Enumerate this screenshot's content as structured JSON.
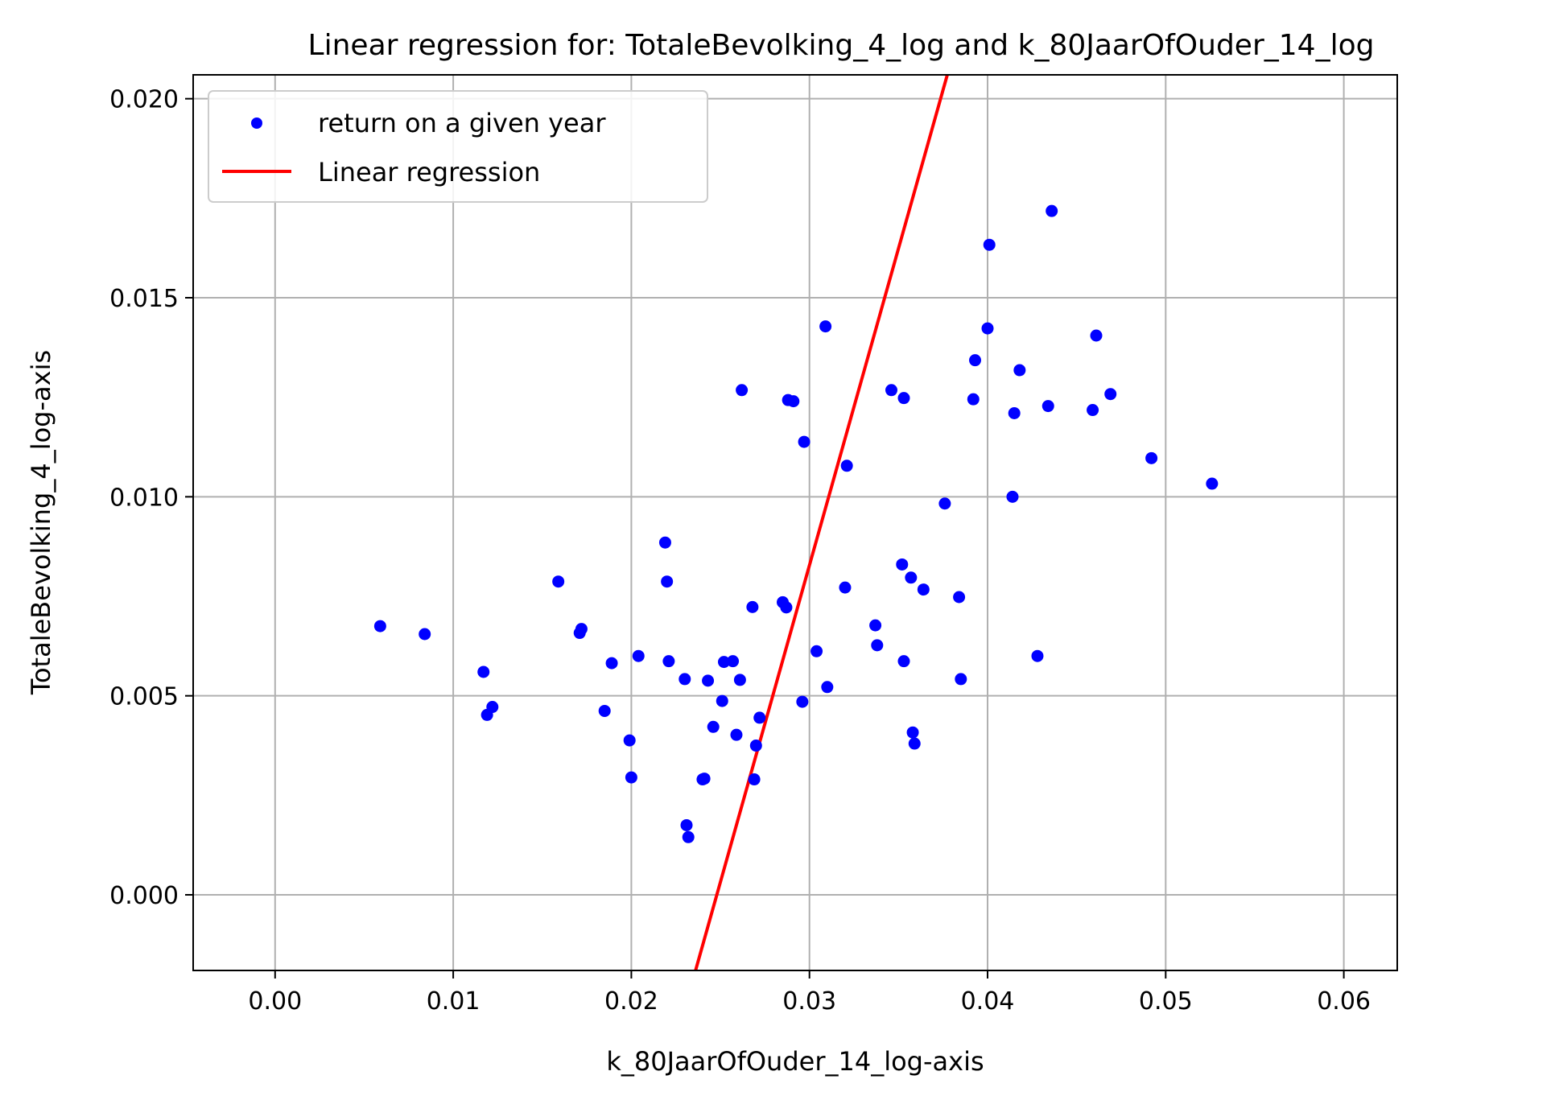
{
  "chart_data": {
    "type": "scatter",
    "title": "Linear regression for: TotaleBevolking_4_log and k_80JaarOfOuder_14_log",
    "xlabel": "k_80JaarOfOuder_14_log-axis",
    "ylabel": "TotaleBevolking_4_log-axis",
    "xlim": [
      -0.0046,
      0.063
    ],
    "ylim": [
      -0.0019,
      0.0206
    ],
    "xticks": [
      "0.00",
      "0.01",
      "0.02",
      "0.03",
      "0.04",
      "0.05",
      "0.06"
    ],
    "xtick_values": [
      0.0,
      0.01,
      0.02,
      0.03,
      0.04,
      0.05,
      0.06
    ],
    "yticks": [
      "0.000",
      "0.005",
      "0.010",
      "0.015",
      "0.020"
    ],
    "ytick_values": [
      0.0,
      0.005,
      0.01,
      0.015,
      0.02
    ],
    "grid": true,
    "legend_position": "top-left",
    "series": [
      {
        "name": "return on a given year",
        "kind": "scatter",
        "color": "#0000ff",
        "points": [
          [
            0.0059,
            0.00675
          ],
          [
            0.0084,
            0.00655
          ],
          [
            0.0117,
            0.0056
          ],
          [
            0.0119,
            0.00452
          ],
          [
            0.0122,
            0.00472
          ],
          [
            0.0159,
            0.00787
          ],
          [
            0.0171,
            0.00658
          ],
          [
            0.0172,
            0.00668
          ],
          [
            0.0185,
            0.00462
          ],
          [
            0.0189,
            0.00582
          ],
          [
            0.0199,
            0.00388
          ],
          [
            0.02,
            0.00295
          ],
          [
            0.0204,
            0.006
          ],
          [
            0.0219,
            0.00885
          ],
          [
            0.022,
            0.00787
          ],
          [
            0.0221,
            0.00587
          ],
          [
            0.023,
            0.00542
          ],
          [
            0.0231,
            0.00175
          ],
          [
            0.0232,
            0.00145
          ],
          [
            0.024,
            0.0029
          ],
          [
            0.0241,
            0.00292
          ],
          [
            0.0243,
            0.00538
          ],
          [
            0.0246,
            0.00422
          ],
          [
            0.0251,
            0.00487
          ],
          [
            0.0252,
            0.00585
          ],
          [
            0.0257,
            0.00587
          ],
          [
            0.0259,
            0.00402
          ],
          [
            0.0261,
            0.0054
          ],
          [
            0.0262,
            0.01268
          ],
          [
            0.0268,
            0.00723
          ],
          [
            0.0269,
            0.0029
          ],
          [
            0.027,
            0.00375
          ],
          [
            0.0272,
            0.00445
          ],
          [
            0.0285,
            0.00735
          ],
          [
            0.0287,
            0.00722
          ],
          [
            0.0288,
            0.01243
          ],
          [
            0.0291,
            0.0124
          ],
          [
            0.0296,
            0.00485
          ],
          [
            0.0297,
            0.01138
          ],
          [
            0.0304,
            0.00612
          ],
          [
            0.0309,
            0.01428
          ],
          [
            0.031,
            0.00522
          ],
          [
            0.032,
            0.00772
          ],
          [
            0.0321,
            0.01078
          ],
          [
            0.0337,
            0.00677
          ],
          [
            0.0338,
            0.00627
          ],
          [
            0.0346,
            0.01268
          ],
          [
            0.0352,
            0.0083
          ],
          [
            0.0353,
            0.01248
          ],
          [
            0.0353,
            0.00587
          ],
          [
            0.0357,
            0.00797
          ],
          [
            0.0358,
            0.00408
          ],
          [
            0.0359,
            0.0038
          ],
          [
            0.0364,
            0.00767
          ],
          [
            0.0376,
            0.00983
          ],
          [
            0.0384,
            0.00748
          ],
          [
            0.0385,
            0.00542
          ],
          [
            0.0392,
            0.01245
          ],
          [
            0.0393,
            0.01343
          ],
          [
            0.04,
            0.01423
          ],
          [
            0.0401,
            0.01633
          ],
          [
            0.0414,
            0.01
          ],
          [
            0.0415,
            0.0121
          ],
          [
            0.0418,
            0.01318
          ],
          [
            0.0428,
            0.006
          ],
          [
            0.0434,
            0.01228
          ],
          [
            0.0436,
            0.01718
          ],
          [
            0.0459,
            0.01218
          ],
          [
            0.0461,
            0.01405
          ],
          [
            0.0469,
            0.01258
          ],
          [
            0.0492,
            0.01097
          ],
          [
            0.0526,
            0.01033
          ]
        ]
      },
      {
        "name": "Linear regression",
        "kind": "line",
        "color": "#ff0000",
        "slope": 1.592,
        "intercept": -0.03948
      }
    ]
  }
}
